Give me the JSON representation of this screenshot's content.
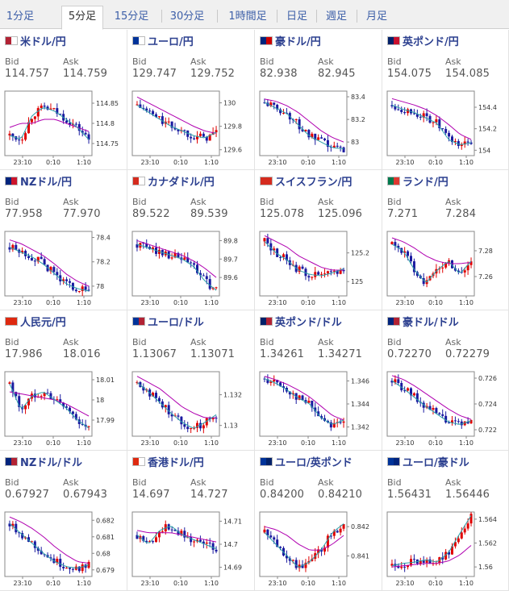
{
  "tabs": [
    {
      "label": "1分足",
      "active": false
    },
    {
      "label": "5分足",
      "active": true
    },
    {
      "label": "15分足",
      "active": false
    },
    {
      "label": "30分足",
      "active": false
    },
    {
      "label": "1時間足",
      "active": false
    },
    {
      "label": "日足",
      "active": false
    },
    {
      "label": "週足",
      "active": false
    },
    {
      "label": "月足",
      "active": false
    }
  ],
  "labels": {
    "bid": "Bid",
    "ask": "Ask"
  },
  "colors": {
    "up": "#e00000",
    "down": "#1a1aa0",
    "ma_fast": "#2aa0a8",
    "ma_slow": "#b000b0",
    "name": "#2b3f8f"
  },
  "pairs": [
    {
      "name": "米ドル/円",
      "flags": [
        "#b22234",
        "#ffffff"
      ],
      "bid": "114.757",
      "ask": "114.759",
      "chart_data": {
        "type": "candlestick",
        "x_ticks": [
          "23:10",
          "0:10",
          "1:10"
        ],
        "y_ticks": [
          "114.85",
          "114.8",
          "114.75"
        ],
        "ylim": [
          114.72,
          114.88
        ],
        "trend": [
          114.77,
          114.76,
          114.82,
          114.84,
          114.83,
          114.81,
          114.79,
          114.76
        ],
        "ma_slow": [
          114.79,
          114.8,
          114.8,
          114.81,
          114.81,
          114.8,
          114.79,
          114.78
        ]
      }
    },
    {
      "name": "ユーロ/円",
      "flags": [
        "#003399",
        "#ffffff"
      ],
      "bid": "129.747",
      "ask": "129.752",
      "chart_data": {
        "type": "candlestick",
        "x_ticks": [
          "23:10",
          "0:10",
          "1:10"
        ],
        "y_ticks": [
          "130",
          "129.8",
          "129.6"
        ],
        "ylim": [
          129.55,
          130.1
        ],
        "trend": [
          129.98,
          129.92,
          129.86,
          129.8,
          129.76,
          129.72,
          129.7,
          129.75
        ],
        "ma_slow": [
          130.05,
          130.0,
          129.95,
          129.9,
          129.85,
          129.8,
          129.76,
          129.74
        ]
      }
    },
    {
      "name": "豪ドル/円",
      "flags": [
        "#00247d",
        "#cc0000"
      ],
      "bid": "82.938",
      "ask": "82.945",
      "chart_data": {
        "type": "candlestick",
        "x_ticks": [
          "23:10",
          "0:10",
          "1:10"
        ],
        "y_ticks": [
          "83.4",
          "83.2",
          "83"
        ],
        "ylim": [
          82.88,
          83.45
        ],
        "trend": [
          83.35,
          83.3,
          83.25,
          83.15,
          83.05,
          83.0,
          82.95,
          82.94
        ],
        "ma_slow": [
          83.38,
          83.36,
          83.32,
          83.26,
          83.18,
          83.1,
          83.04,
          83.0
        ]
      }
    },
    {
      "name": "英ポンド/円",
      "flags": [
        "#012169",
        "#c8102e"
      ],
      "bid": "154.075",
      "ask": "154.085",
      "chart_data": {
        "type": "candlestick",
        "x_ticks": [
          "23:10",
          "0:10",
          "1:10"
        ],
        "y_ticks": [
          "154.4",
          "154.2",
          "154"
        ],
        "ylim": [
          153.95,
          154.55
        ],
        "trend": [
          154.42,
          154.38,
          154.35,
          154.3,
          154.25,
          154.1,
          154.05,
          154.07
        ],
        "ma_slow": [
          154.48,
          154.45,
          154.42,
          154.38,
          154.32,
          154.24,
          154.15,
          154.1
        ]
      }
    },
    {
      "name": "NZドル/円",
      "flags": [
        "#00247d",
        "#cc142b"
      ],
      "bid": "77.958",
      "ask": "77.970",
      "chart_data": {
        "type": "candlestick",
        "x_ticks": [
          "23:10",
          "0:10",
          "1:10"
        ],
        "y_ticks": [
          "78.4",
          "78.2",
          "78"
        ],
        "ylim": [
          77.92,
          78.45
        ],
        "trend": [
          78.32,
          78.28,
          78.24,
          78.18,
          78.1,
          78.02,
          77.98,
          77.96
        ],
        "ma_slow": [
          78.38,
          78.35,
          78.3,
          78.25,
          78.18,
          78.1,
          78.04,
          78.0
        ]
      }
    },
    {
      "name": "カナダドル/円",
      "flags": [
        "#d52b1e",
        "#ffffff"
      ],
      "bid": "89.522",
      "ask": "89.539",
      "chart_data": {
        "type": "candlestick",
        "x_ticks": [
          "23:10",
          "0:10",
          "1:10"
        ],
        "y_ticks": [
          "89.8",
          "89.7",
          "89.6"
        ],
        "ylim": [
          89.5,
          89.85
        ],
        "trend": [
          89.78,
          89.76,
          89.74,
          89.72,
          89.7,
          89.66,
          89.58,
          89.53
        ],
        "ma_slow": [
          89.8,
          89.78,
          89.76,
          89.74,
          89.72,
          89.69,
          89.65,
          89.6
        ]
      }
    },
    {
      "name": "スイスフラン/円",
      "flags": [
        "#d52b1e",
        "#d52b1e"
      ],
      "bid": "125.078",
      "ask": "125.096",
      "chart_data": {
        "type": "candlestick",
        "x_ticks": [
          "23:10",
          "0:10",
          "1:10"
        ],
        "y_ticks": [
          "125.2",
          "125"
        ],
        "ylim": [
          124.9,
          125.35
        ],
        "trend": [
          125.28,
          125.2,
          125.15,
          125.08,
          125.05,
          125.04,
          125.06,
          125.09
        ],
        "ma_slow": [
          125.32,
          125.28,
          125.24,
          125.18,
          125.14,
          125.1,
          125.08,
          125.08
        ]
      }
    },
    {
      "name": "ランド/円",
      "flags": [
        "#007a4d",
        "#de3831"
      ],
      "bid": "7.271",
      "ask": "7.284",
      "chart_data": {
        "type": "candlestick",
        "x_ticks": [
          "23:10",
          "0:10",
          "1:10"
        ],
        "y_ticks": [
          "7.28",
          "7.26"
        ],
        "ylim": [
          7.245,
          7.295
        ],
        "trend": [
          7.285,
          7.28,
          7.265,
          7.255,
          7.265,
          7.272,
          7.262,
          7.272
        ],
        "ma_slow": [
          7.29,
          7.287,
          7.282,
          7.276,
          7.272,
          7.27,
          7.27,
          7.271
        ]
      }
    },
    {
      "name": "人民元/円",
      "flags": [
        "#de2910",
        "#de2910"
      ],
      "bid": "17.986",
      "ask": "18.016",
      "chart_data": {
        "type": "candlestick",
        "x_ticks": [
          "23:10",
          "0:10",
          "1:10"
        ],
        "y_ticks": [
          "18.01",
          "18",
          "17.99"
        ],
        "ylim": [
          17.982,
          18.014
        ],
        "trend": [
          18.008,
          17.995,
          18.002,
          18.004,
          18.0,
          17.996,
          17.99,
          17.986
        ],
        "ma_slow": [
          18.004,
          18.003,
          18.002,
          18.001,
          18.0,
          17.998,
          17.995,
          17.992
        ]
      }
    },
    {
      "name": "ユーロ/ドル",
      "flags": [
        "#003399",
        "#b22234"
      ],
      "bid": "1.13067",
      "ask": "1.13071",
      "chart_data": {
        "type": "candlestick",
        "x_ticks": [
          "23:10",
          "0:10",
          "1:10"
        ],
        "y_ticks": [
          "1.132",
          "1.13"
        ],
        "ylim": [
          1.1293,
          1.1335
        ],
        "trend": [
          1.1328,
          1.1322,
          1.1315,
          1.1308,
          1.1302,
          1.1298,
          1.1302,
          1.1307
        ],
        "ma_slow": [
          1.1332,
          1.1328,
          1.1324,
          1.1318,
          1.1312,
          1.1308,
          1.1305,
          1.1305
        ]
      }
    },
    {
      "name": "英ポンド/ドル",
      "flags": [
        "#012169",
        "#b22234"
      ],
      "bid": "1.34261",
      "ask": "1.34271",
      "chart_data": {
        "type": "candlestick",
        "x_ticks": [
          "23:10",
          "0:10",
          "1:10"
        ],
        "y_ticks": [
          "1.346",
          "1.344",
          "1.342"
        ],
        "ylim": [
          1.3412,
          1.3468
        ],
        "trend": [
          1.3462,
          1.3458,
          1.3452,
          1.3445,
          1.344,
          1.3428,
          1.3422,
          1.3426
        ],
        "ma_slow": [
          1.3464,
          1.3461,
          1.3457,
          1.3452,
          1.3446,
          1.3438,
          1.343,
          1.3426
        ]
      }
    },
    {
      "name": "豪ドル/ドル",
      "flags": [
        "#00247d",
        "#b22234"
      ],
      "bid": "0.72270",
      "ask": "0.72279",
      "chart_data": {
        "type": "candlestick",
        "x_ticks": [
          "23:10",
          "0:10",
          "1:10"
        ],
        "y_ticks": [
          "0.726",
          "0.724",
          "0.722"
        ],
        "ylim": [
          0.7215,
          0.7265
        ],
        "trend": [
          0.7258,
          0.7252,
          0.7245,
          0.7238,
          0.7232,
          0.7226,
          0.7224,
          0.7227
        ],
        "ma_slow": [
          0.7262,
          0.7259,
          0.7254,
          0.7248,
          0.7242,
          0.7236,
          0.7231,
          0.7228
        ]
      }
    },
    {
      "name": "NZドル/ドル",
      "flags": [
        "#00247d",
        "#b22234"
      ],
      "bid": "0.67927",
      "ask": "0.67943",
      "chart_data": {
        "type": "candlestick",
        "x_ticks": [
          "23:10",
          "0:10",
          "1:10"
        ],
        "y_ticks": [
          "0.682",
          "0.681",
          "0.68",
          "0.679"
        ],
        "ylim": [
          0.6786,
          0.6825
        ],
        "trend": [
          0.6818,
          0.6812,
          0.6806,
          0.68,
          0.6795,
          0.6792,
          0.6791,
          0.6793
        ],
        "ma_slow": [
          0.6822,
          0.6819,
          0.6815,
          0.681,
          0.6804,
          0.6799,
          0.6795,
          0.6794
        ]
      }
    },
    {
      "name": "香港ドル/円",
      "flags": [
        "#de2910",
        "#ffffff"
      ],
      "bid": "14.697",
      "ask": "14.727",
      "chart_data": {
        "type": "candlestick",
        "x_ticks": [
          "23:10",
          "0:10",
          "1:10"
        ],
        "y_ticks": [
          "14.71",
          "14.7",
          "14.69"
        ],
        "ylim": [
          14.686,
          14.714
        ],
        "trend": [
          14.704,
          14.7,
          14.706,
          14.708,
          14.704,
          14.702,
          14.7,
          14.698
        ],
        "ma_slow": [
          14.706,
          14.705,
          14.705,
          14.705,
          14.704,
          14.703,
          14.702,
          14.701
        ]
      }
    },
    {
      "name": "ユーロ/英ポンド",
      "flags": [
        "#003399",
        "#012169"
      ],
      "bid": "0.84200",
      "ask": "0.84210",
      "chart_data": {
        "type": "candlestick",
        "x_ticks": [
          "23:10",
          "0:10",
          "1:10"
        ],
        "y_ticks": [
          "0.842",
          "0.841"
        ],
        "ylim": [
          0.8403,
          0.8425
        ],
        "trend": [
          0.8418,
          0.8414,
          0.841,
          0.8406,
          0.8408,
          0.8412,
          0.8418,
          0.8421
        ],
        "ma_slow": [
          0.842,
          0.8419,
          0.8417,
          0.8414,
          0.8412,
          0.8412,
          0.8414,
          0.8417
        ]
      }
    },
    {
      "name": "ユーロ/豪ドル",
      "flags": [
        "#003399",
        "#00247d"
      ],
      "bid": "1.56431",
      "ask": "1.56446",
      "chart_data": {
        "type": "candlestick",
        "x_ticks": [
          "23:10",
          "0:10",
          "1:10"
        ],
        "y_ticks": [
          "1.564",
          "1.562",
          "1.56"
        ],
        "ylim": [
          1.5592,
          1.5646
        ],
        "trend": [
          1.5601,
          1.5603,
          1.5604,
          1.5606,
          1.5604,
          1.5612,
          1.5628,
          1.5643
        ],
        "ma_slow": [
          1.56,
          1.5601,
          1.5602,
          1.5603,
          1.5603,
          1.5605,
          1.561,
          1.5618
        ]
      }
    }
  ]
}
